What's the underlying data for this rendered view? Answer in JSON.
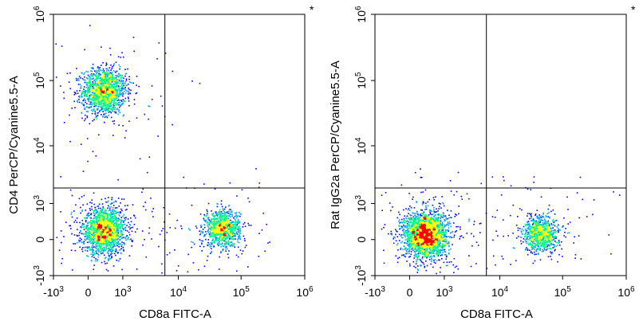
{
  "chart_data": [
    {
      "type": "scatter",
      "subtype": "flow-cytometry density dot plot with quadrant gates",
      "marker": "*",
      "xlabel": "CD8a FITC-A",
      "ylabel": "CD4 PerCP/Cyanine5.5-A",
      "x_scale": "biexponential",
      "y_scale": "biexponential",
      "xlim": [
        -1000,
        1000000
      ],
      "ylim": [
        -1000,
        1000000
      ],
      "x_ticks": [
        {
          "base": "-10",
          "exp": "3",
          "value": -1000
        },
        {
          "base": "0",
          "exp": "",
          "value": 0
        },
        {
          "base": "10",
          "exp": "3",
          "value": 1000
        },
        {
          "base": "10",
          "exp": "4",
          "value": 10000
        },
        {
          "base": "10",
          "exp": "5",
          "value": 100000
        },
        {
          "base": "10",
          "exp": "6",
          "value": 1000000
        }
      ],
      "y_ticks": [
        {
          "base": "-10",
          "exp": "3",
          "value": -1000
        },
        {
          "base": "0",
          "exp": "",
          "value": 0
        },
        {
          "base": "10",
          "exp": "3",
          "value": 1000
        },
        {
          "base": "10",
          "exp": "4",
          "value": 10000
        },
        {
          "base": "10",
          "exp": "5",
          "value": 100000
        },
        {
          "base": "10",
          "exp": "6",
          "value": 1000000
        }
      ],
      "quadrant_gate": {
        "x": 6000,
        "y": 2000
      },
      "populations": [
        {
          "x": 300,
          "y": 70000,
          "spread": 1.0,
          "weight": 1.0
        },
        {
          "x": 300,
          "y": 150,
          "spread": 1.0,
          "weight": 1.2
        },
        {
          "x": 50000,
          "y": 200,
          "spread": 0.8,
          "weight": 0.7
        }
      ],
      "density_colors": [
        "#0000ff",
        "#00a0ff",
        "#00ff80",
        "#ffff00",
        "#ff0000"
      ]
    },
    {
      "type": "scatter",
      "subtype": "flow-cytometry density dot plot with quadrant gates",
      "marker": "*",
      "xlabel": "CD8a FITC-A",
      "ylabel": "Rat IgG2a PerCP/Cyanine5.5-A",
      "x_scale": "biexponential",
      "y_scale": "biexponential",
      "xlim": [
        -1000,
        1000000
      ],
      "ylim": [
        -1000,
        1000000
      ],
      "x_ticks": [
        {
          "base": "-10",
          "exp": "3",
          "value": -1000
        },
        {
          "base": "0",
          "exp": "",
          "value": 0
        },
        {
          "base": "10",
          "exp": "3",
          "value": 1000
        },
        {
          "base": "10",
          "exp": "4",
          "value": 10000
        },
        {
          "base": "10",
          "exp": "5",
          "value": 100000
        },
        {
          "base": "10",
          "exp": "6",
          "value": 1000000
        }
      ],
      "y_ticks": [
        {
          "base": "-10",
          "exp": "3",
          "value": -1000
        },
        {
          "base": "0",
          "exp": "",
          "value": 0
        },
        {
          "base": "10",
          "exp": "3",
          "value": 1000
        },
        {
          "base": "10",
          "exp": "4",
          "value": 10000
        },
        {
          "base": "10",
          "exp": "5",
          "value": 100000
        },
        {
          "base": "10",
          "exp": "6",
          "value": 1000000
        }
      ],
      "quadrant_gate": {
        "x": 6000,
        "y": 2000
      },
      "populations": [
        {
          "x": 300,
          "y": 80,
          "spread": 1.0,
          "weight": 1.6
        },
        {
          "x": 45000,
          "y": 100,
          "spread": 0.8,
          "weight": 0.6
        }
      ],
      "density_colors": [
        "#0000ff",
        "#00a0ff",
        "#00ff80",
        "#ffff00",
        "#ff0000"
      ]
    }
  ]
}
